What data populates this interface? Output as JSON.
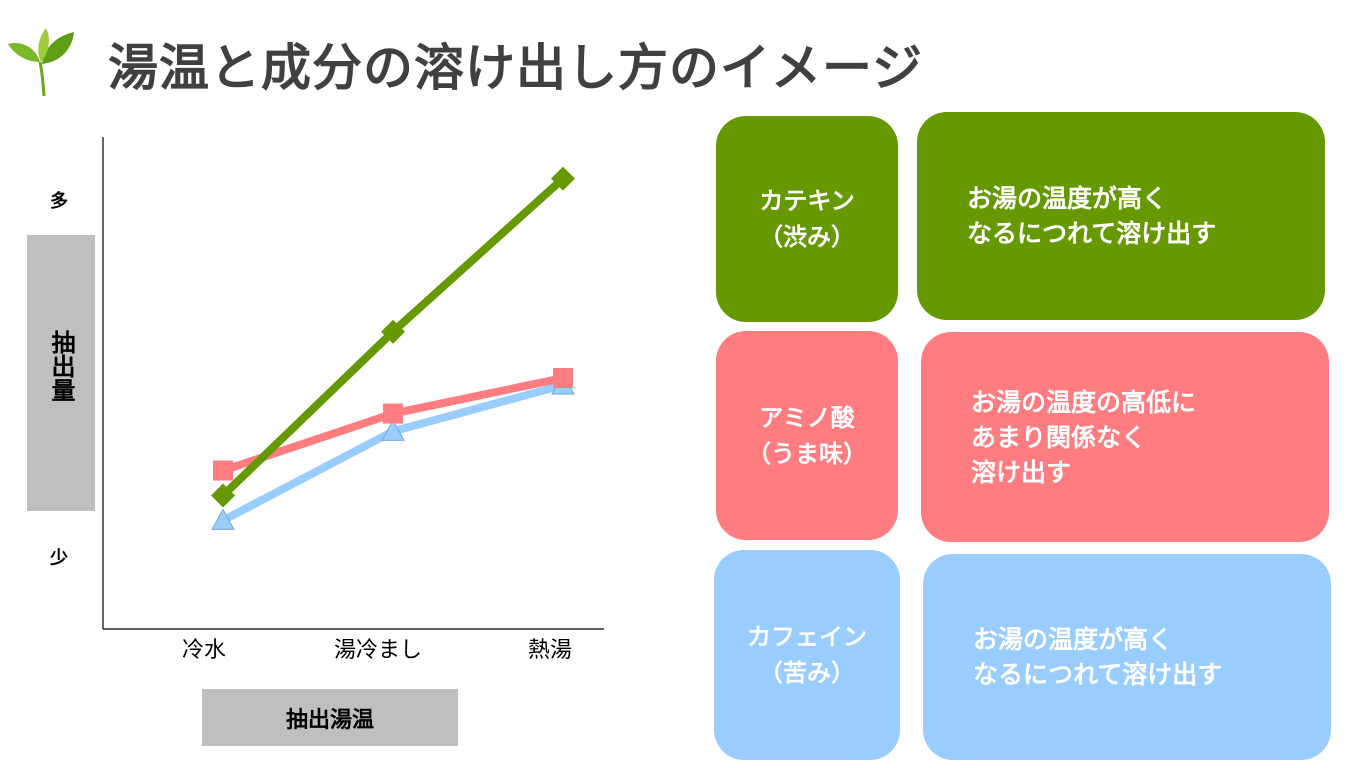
{
  "title": "湯温と成分の溶け出し方のイメージ",
  "colors": {
    "green": "#669900",
    "pink": "#ff7c80",
    "blue": "#99ccff"
  },
  "chart_data": {
    "type": "line",
    "categories": [
      "冷水",
      "湯冷まし",
      "熱湯"
    ],
    "xlabel": "抽出湯温",
    "ylabel": "抽出量",
    "y_tick_labels": {
      "top": "多",
      "bottom": "少"
    },
    "ylim": [
      0,
      10
    ],
    "grid": false,
    "series": [
      {
        "key": "catechin",
        "color": "#669900",
        "marker": "diamond",
        "values": [
          1.7,
          6.3,
          10.6
        ]
      },
      {
        "key": "amino",
        "color": "#ff7c80",
        "marker": "square",
        "values": [
          2.4,
          4.0,
          5.0
        ]
      },
      {
        "key": "caffeine",
        "color": "#99ccff",
        "marker": "triangle",
        "values": [
          1.0,
          3.5,
          4.8
        ]
      }
    ]
  },
  "cards": [
    {
      "name_line1": "カテキン",
      "name_line2": "（渋み）",
      "desc": [
        "お湯の温度が高く",
        "なるにつれて溶け出す"
      ]
    },
    {
      "name_line1": "アミノ酸",
      "name_line2": "（うま味）",
      "desc": [
        "お湯の温度の高低に",
        "あまり関係なく",
        "溶け出す"
      ]
    },
    {
      "name_line1": "カフェイン",
      "name_line2": "（苦み）",
      "desc": [
        "お湯の温度が高く",
        "なるにつれて溶け出す"
      ]
    }
  ]
}
